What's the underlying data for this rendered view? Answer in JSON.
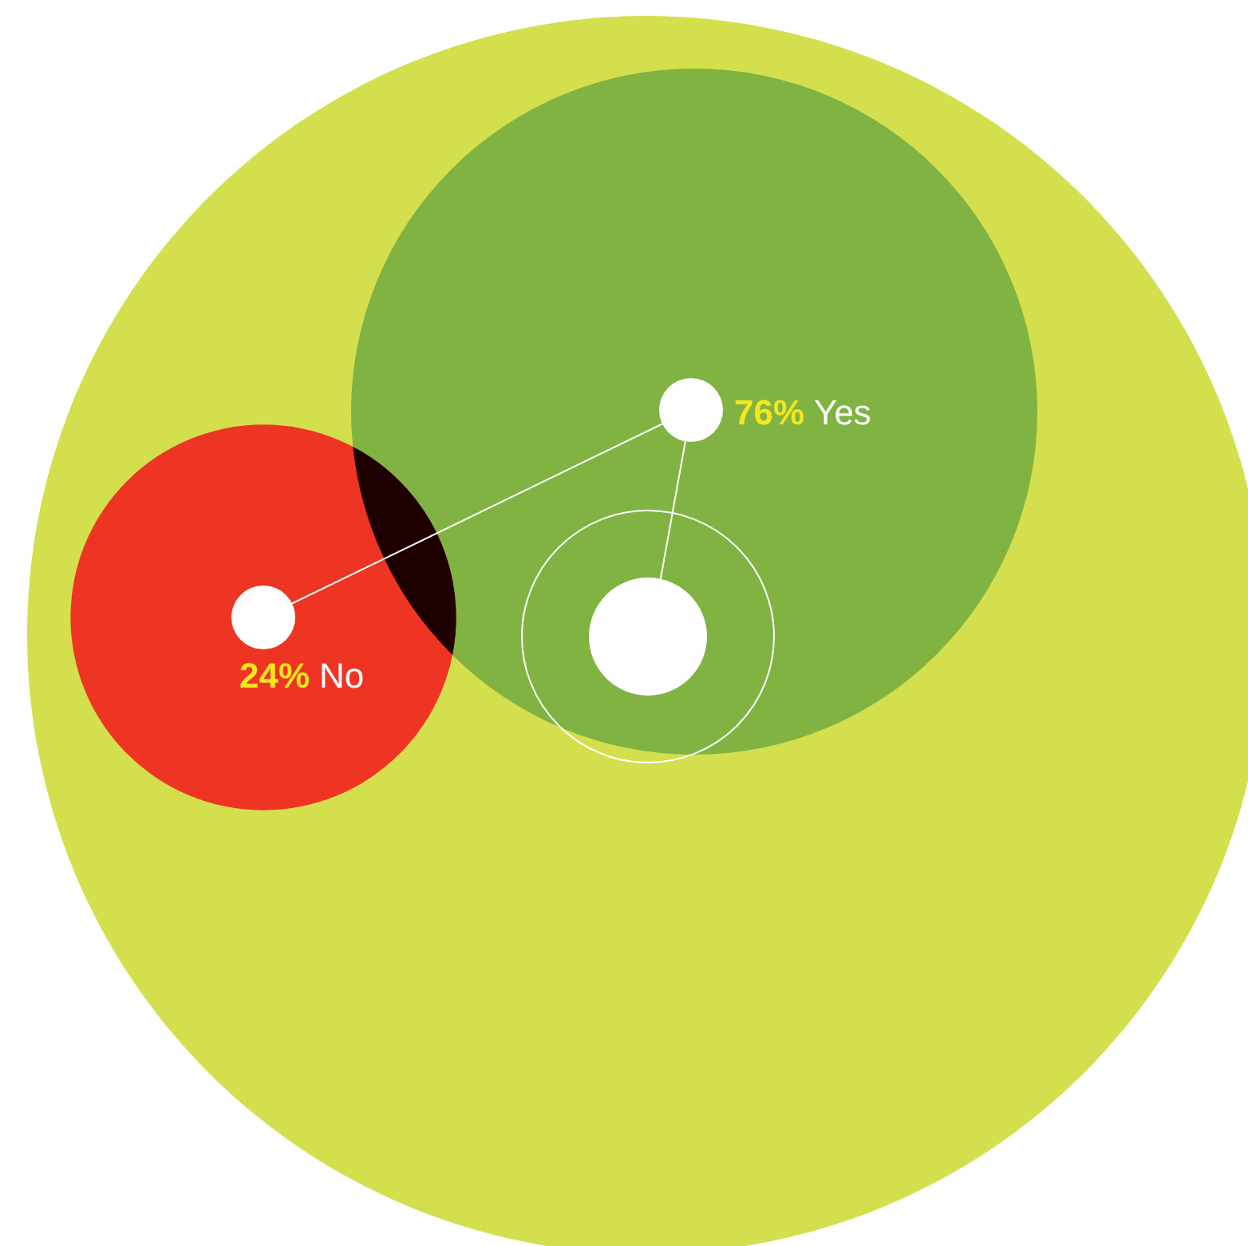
{
  "chart_data": {
    "type": "other",
    "categories": [
      "Yes",
      "No"
    ],
    "values": [
      76,
      24
    ],
    "colors": [
      "#80b342",
      "#ee3524"
    ],
    "value_labels": [
      "76%",
      "24%"
    ]
  }
}
